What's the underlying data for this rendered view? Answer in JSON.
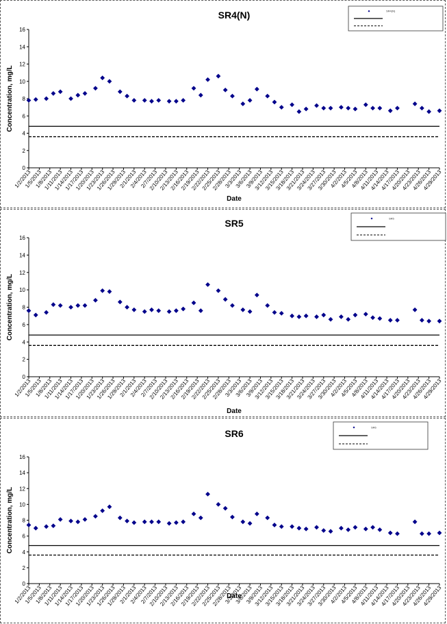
{
  "dates": [
    "1/2/2013",
    "1/5/2013",
    "1/8/2013",
    "1/11/2013",
    "1/14/2013",
    "1/17/2013",
    "1/20/2013",
    "1/23/2013",
    "1/26/2013",
    "1/29/2013",
    "2/1/2013",
    "2/4/2013",
    "2/7/2013",
    "2/10/2013",
    "2/13/2013",
    "2/16/2013",
    "2/19/2013",
    "2/22/2013",
    "2/25/2013",
    "2/28/2013",
    "3/3/2013",
    "3/6/2013",
    "3/9/2013",
    "3/12/2013",
    "3/15/2013",
    "3/18/2013",
    "3/21/2013",
    "3/24/2013",
    "3/27/2013",
    "3/30/2013",
    "4/2/2013",
    "4/5/2013",
    "4/8/2013",
    "4/11/2013",
    "4/14/2013",
    "4/17/2013",
    "4/20/2013",
    "4/23/2013",
    "4/26/2013",
    "4/29/2013"
  ],
  "chart_data": [
    {
      "type": "scatter",
      "title": "SR4(N)",
      "xlabel": "Date",
      "ylabel": "Concentration, mg/L",
      "ylim": [
        0,
        16
      ],
      "yticks": [
        0,
        2,
        4,
        6,
        8,
        10,
        12,
        14,
        16
      ],
      "marker_color": "#00008B",
      "legend_position": "top-right",
      "series": [
        {
          "name": "SR4(N)",
          "points": [
            [
              "1/2/2013",
              7.8
            ],
            [
              "1/4/2013",
              7.9
            ],
            [
              "1/7/2013",
              8.0
            ],
            [
              "1/9/2013",
              8.6
            ],
            [
              "1/11/2013",
              8.8
            ],
            [
              "1/14/2013",
              8.0
            ],
            [
              "1/16/2013",
              8.4
            ],
            [
              "1/18/2013",
              8.6
            ],
            [
              "1/21/2013",
              9.2
            ],
            [
              "1/23/2013",
              10.4
            ],
            [
              "1/25/2013",
              10.0
            ],
            [
              "1/28/2013",
              8.8
            ],
            [
              "1/30/2013",
              8.3
            ],
            [
              "2/1/2013",
              7.8
            ],
            [
              "2/4/2013",
              7.8
            ],
            [
              "2/6/2013",
              7.7
            ],
            [
              "2/8/2013",
              7.8
            ],
            [
              "2/11/2013",
              7.7
            ],
            [
              "2/13/2013",
              7.7
            ],
            [
              "2/15/2013",
              7.8
            ],
            [
              "2/18/2013",
              9.2
            ],
            [
              "2/20/2013",
              8.4
            ],
            [
              "2/22/2013",
              10.2
            ],
            [
              "2/25/2013",
              10.6
            ],
            [
              "2/27/2013",
              9.0
            ],
            [
              "3/1/2013",
              8.3
            ],
            [
              "3/4/2013",
              7.4
            ],
            [
              "3/6/2013",
              7.8
            ],
            [
              "3/8/2013",
              9.1
            ],
            [
              "3/11/2013",
              8.3
            ],
            [
              "3/13/2013",
              7.6
            ],
            [
              "3/15/2013",
              7.0
            ],
            [
              "3/18/2013",
              7.3
            ],
            [
              "3/20/2013",
              6.5
            ],
            [
              "3/22/2013",
              6.8
            ],
            [
              "3/25/2013",
              7.2
            ],
            [
              "3/27/2013",
              6.9
            ],
            [
              "3/29/2013",
              6.9
            ],
            [
              "4/1/2013",
              7.0
            ],
            [
              "4/3/2013",
              6.9
            ],
            [
              "4/5/2013",
              6.8
            ],
            [
              "4/8/2013",
              7.3
            ],
            [
              "4/10/2013",
              6.9
            ],
            [
              "4/12/2013",
              6.9
            ],
            [
              "4/15/2013",
              6.6
            ],
            [
              "4/17/2013",
              6.9
            ],
            [
              "4/22/2013",
              7.4
            ],
            [
              "4/24/2013",
              6.9
            ],
            [
              "4/26/2013",
              6.5
            ],
            [
              "4/29/2013",
              6.6
            ]
          ]
        }
      ],
      "reference_lines": [
        {
          "value": 4.8,
          "style": "solid"
        },
        {
          "value": 3.6,
          "style": "dashed"
        }
      ]
    },
    {
      "type": "scatter",
      "title": "SR5",
      "xlabel": "Date",
      "ylabel": "Concentration, mg/L",
      "ylim": [
        0,
        16
      ],
      "yticks": [
        0,
        2,
        4,
        6,
        8,
        10,
        12,
        14,
        16
      ],
      "marker_color": "#00008B",
      "legend_position": "top-right",
      "series": [
        {
          "name": "SR5",
          "points": [
            [
              "1/2/2013",
              7.6
            ],
            [
              "1/4/2013",
              7.1
            ],
            [
              "1/7/2013",
              7.4
            ],
            [
              "1/9/2013",
              8.3
            ],
            [
              "1/11/2013",
              8.2
            ],
            [
              "1/14/2013",
              8.0
            ],
            [
              "1/16/2013",
              8.2
            ],
            [
              "1/18/2013",
              8.2
            ],
            [
              "1/21/2013",
              8.8
            ],
            [
              "1/23/2013",
              9.9
            ],
            [
              "1/25/2013",
              9.8
            ],
            [
              "1/28/2013",
              8.6
            ],
            [
              "1/30/2013",
              8.0
            ],
            [
              "2/1/2013",
              7.7
            ],
            [
              "2/4/2013",
              7.5
            ],
            [
              "2/6/2013",
              7.7
            ],
            [
              "2/8/2013",
              7.6
            ],
            [
              "2/11/2013",
              7.5
            ],
            [
              "2/13/2013",
              7.6
            ],
            [
              "2/15/2013",
              7.8
            ],
            [
              "2/18/2013",
              8.5
            ],
            [
              "2/20/2013",
              7.6
            ],
            [
              "2/22/2013",
              10.6
            ],
            [
              "2/25/2013",
              9.9
            ],
            [
              "2/27/2013",
              8.9
            ],
            [
              "3/1/2013",
              8.2
            ],
            [
              "3/4/2013",
              7.7
            ],
            [
              "3/6/2013",
              7.5
            ],
            [
              "3/8/2013",
              9.4
            ],
            [
              "3/11/2013",
              8.2
            ],
            [
              "3/13/2013",
              7.4
            ],
            [
              "3/15/2013",
              7.3
            ],
            [
              "3/18/2013",
              7.0
            ],
            [
              "3/20/2013",
              6.9
            ],
            [
              "3/22/2013",
              7.0
            ],
            [
              "3/25/2013",
              6.9
            ],
            [
              "3/27/2013",
              7.1
            ],
            [
              "3/29/2013",
              6.6
            ],
            [
              "4/1/2013",
              6.9
            ],
            [
              "4/3/2013",
              6.6
            ],
            [
              "4/5/2013",
              7.1
            ],
            [
              "4/8/2013",
              7.2
            ],
            [
              "4/10/2013",
              6.8
            ],
            [
              "4/12/2013",
              6.7
            ],
            [
              "4/15/2013",
              6.5
            ],
            [
              "4/17/2013",
              6.5
            ],
            [
              "4/22/2013",
              7.7
            ],
            [
              "4/24/2013",
              6.5
            ],
            [
              "4/26/2013",
              6.4
            ],
            [
              "4/29/2013",
              6.4
            ]
          ]
        }
      ],
      "reference_lines": [
        {
          "value": 4.8,
          "style": "solid"
        },
        {
          "value": 3.6,
          "style": "dashed"
        }
      ]
    },
    {
      "type": "scatter",
      "title": "SR6",
      "xlabel": "Date",
      "ylabel": "Concentration, mg/L",
      "ylim": [
        0,
        16
      ],
      "yticks": [
        0,
        2,
        4,
        6,
        8,
        10,
        12,
        14,
        16
      ],
      "marker_color": "#00008B",
      "legend_position": "top-right",
      "series": [
        {
          "name": "SR6",
          "points": [
            [
              "1/2/2013",
              7.4
            ],
            [
              "1/4/2013",
              7.0
            ],
            [
              "1/7/2013",
              7.2
            ],
            [
              "1/9/2013",
              7.3
            ],
            [
              "1/11/2013",
              8.1
            ],
            [
              "1/14/2013",
              7.9
            ],
            [
              "1/16/2013",
              7.8
            ],
            [
              "1/18/2013",
              8.1
            ],
            [
              "1/21/2013",
              8.5
            ],
            [
              "1/23/2013",
              9.2
            ],
            [
              "1/25/2013",
              9.7
            ],
            [
              "1/28/2013",
              8.3
            ],
            [
              "1/30/2013",
              7.9
            ],
            [
              "2/1/2013",
              7.7
            ],
            [
              "2/4/2013",
              7.8
            ],
            [
              "2/6/2013",
              7.8
            ],
            [
              "2/8/2013",
              7.8
            ],
            [
              "2/11/2013",
              7.6
            ],
            [
              "2/13/2013",
              7.7
            ],
            [
              "2/15/2013",
              7.8
            ],
            [
              "2/18/2013",
              8.8
            ],
            [
              "2/20/2013",
              8.3
            ],
            [
              "2/22/2013",
              11.3
            ],
            [
              "2/25/2013",
              10.0
            ],
            [
              "2/27/2013",
              9.5
            ],
            [
              "3/1/2013",
              8.4
            ],
            [
              "3/4/2013",
              7.8
            ],
            [
              "3/6/2013",
              7.6
            ],
            [
              "3/8/2013",
              8.8
            ],
            [
              "3/11/2013",
              8.3
            ],
            [
              "3/13/2013",
              7.4
            ],
            [
              "3/15/2013",
              7.2
            ],
            [
              "3/18/2013",
              7.2
            ],
            [
              "3/20/2013",
              7.0
            ],
            [
              "3/22/2013",
              6.9
            ],
            [
              "3/25/2013",
              7.1
            ],
            [
              "3/27/2013",
              6.7
            ],
            [
              "3/29/2013",
              6.6
            ],
            [
              "4/1/2013",
              7.0
            ],
            [
              "4/3/2013",
              6.8
            ],
            [
              "4/5/2013",
              7.1
            ],
            [
              "4/8/2013",
              6.9
            ],
            [
              "4/10/2013",
              7.1
            ],
            [
              "4/12/2013",
              6.8
            ],
            [
              "4/15/2013",
              6.4
            ],
            [
              "4/17/2013",
              6.3
            ],
            [
              "4/22/2013",
              7.8
            ],
            [
              "4/24/2013",
              6.3
            ],
            [
              "4/26/2013",
              6.3
            ],
            [
              "4/29/2013",
              6.4
            ]
          ]
        }
      ],
      "reference_lines": [
        {
          "value": 4.8,
          "style": "solid"
        },
        {
          "value": 3.6,
          "style": "dashed"
        }
      ]
    }
  ]
}
